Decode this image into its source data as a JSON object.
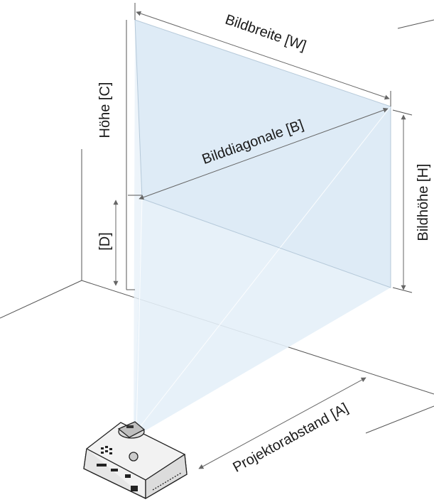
{
  "labels": {
    "width": "Bildbreite [W]",
    "diagonal": "Bilddiagonale [B]",
    "height_total": "Höhe [C]",
    "offset": "[D]",
    "image_height": "Bildhöhe [H]",
    "distance": "Projektorabstand [A]"
  },
  "colors": {
    "screen_fill": "#dceaf5",
    "beam_fill": "#e4eff8",
    "lines": "#555555",
    "arrows": "#666666",
    "projector_body": "#f2f2f2",
    "projector_edge": "#222222"
  },
  "icons": {
    "projector": "projector-icon"
  }
}
